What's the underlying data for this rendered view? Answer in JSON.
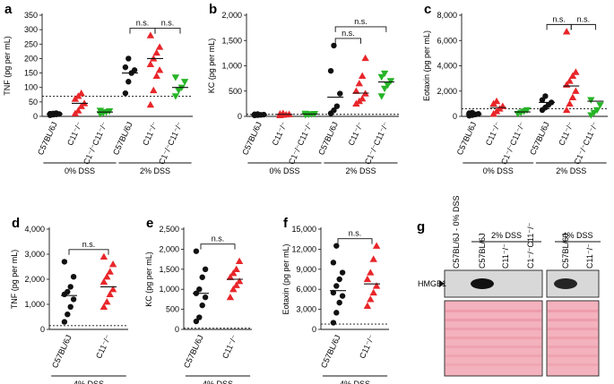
{
  "panels": [
    {
      "letter": "a",
      "ylabel": "TNF (pg per mL)",
      "yticks": [
        0,
        50,
        100,
        150,
        200,
        250,
        300,
        350
      ],
      "ylim": [
        0,
        350
      ],
      "threshold": 70,
      "groups": [
        {
          "label": "C57BL/6J",
          "color": "#111111",
          "marker": "circle",
          "values": [
            4,
            6,
            7,
            8,
            9,
            10,
            11
          ],
          "mean": 8
        },
        {
          "label": "C11⁻/⁻",
          "color": "#e8262a",
          "marker": "triangle",
          "values": [
            10,
            20,
            35,
            45,
            60,
            70,
            80
          ],
          "mean": 45
        },
        {
          "label": "C1⁻/⁻C11⁻/⁻",
          "color": "#26b426",
          "marker": "triangle-down",
          "values": [
            8,
            12,
            15,
            18,
            20
          ],
          "mean": 15
        },
        {
          "label": "C57BL/6J",
          "color": "#111111",
          "marker": "circle",
          "values": [
            80,
            120,
            150,
            160,
            170,
            200
          ],
          "mean": 150
        },
        {
          "label": "C11⁻/⁻",
          "color": "#e8262a",
          "marker": "triangle",
          "values": [
            40,
            90,
            140,
            160,
            180,
            200,
            220,
            240,
            280
          ],
          "mean": 200
        },
        {
          "label": "C1⁻/⁻C11⁻/⁻",
          "color": "#26b426",
          "marker": "triangle-down",
          "values": [
            70,
            90,
            100,
            120,
            135
          ],
          "mean": 100
        }
      ],
      "sig": [
        {
          "from": 3,
          "to": 4,
          "label": "n.s.",
          "level": 0
        },
        {
          "from": 4,
          "to": 5,
          "label": "n.s.",
          "level": 0
        }
      ],
      "conditions": [
        {
          "label": "0% DSS",
          "groups": [
            0,
            2
          ]
        },
        {
          "label": "2% DSS",
          "groups": [
            3,
            5
          ]
        }
      ]
    },
    {
      "letter": "b",
      "ylabel": "KC (pg per mL)",
      "yticks": [
        0,
        500,
        1000,
        1500,
        2000
      ],
      "ylim": [
        0,
        2000
      ],
      "threshold": 40,
      "groups": [
        {
          "label": "C57BL/6J",
          "color": "#111111",
          "marker": "circle",
          "values": [
            20,
            25,
            30,
            35,
            40,
            45
          ],
          "mean": 30
        },
        {
          "label": "C11⁻/⁻",
          "color": "#e8262a",
          "marker": "triangle",
          "values": [
            20,
            30,
            35,
            40,
            50,
            60
          ],
          "mean": 40
        },
        {
          "label": "C1⁻/⁻C11⁻/⁻",
          "color": "#26b426",
          "marker": "triangle-down",
          "values": [
            30,
            40,
            45,
            50,
            55
          ],
          "mean": 45
        },
        {
          "label": "C57BL/6J",
          "color": "#111111",
          "marker": "circle",
          "values": [
            60,
            120,
            200,
            450,
            900,
            1400
          ],
          "mean": 380
        },
        {
          "label": "C11⁻/⁻",
          "color": "#e8262a",
          "marker": "triangle",
          "values": [
            250,
            300,
            350,
            450,
            500,
            650,
            800,
            1150
          ],
          "mean": 460
        },
        {
          "label": "C1⁻/⁻C11⁻/⁻",
          "color": "#26b426",
          "marker": "triangle-down",
          "values": [
            400,
            550,
            620,
            700,
            780,
            850
          ],
          "mean": 680
        }
      ],
      "sig": [
        {
          "from": 3,
          "to": 4,
          "label": "n.s.",
          "level": 0
        },
        {
          "from": 3,
          "to": 5,
          "label": "n.s.",
          "level": 1
        }
      ],
      "conditions": [
        {
          "label": "0% DSS",
          "groups": [
            0,
            2
          ]
        },
        {
          "label": "2% DSS",
          "groups": [
            3,
            5
          ]
        }
      ]
    },
    {
      "letter": "c",
      "ylabel": "Eotaxin (pg per mL)",
      "yticks": [
        0,
        2000,
        4000,
        6000,
        8000
      ],
      "ylim": [
        0,
        8000
      ],
      "threshold": 600,
      "groups": [
        {
          "label": "C57BL/6J",
          "color": "#111111",
          "marker": "circle",
          "values": [
            50,
            100,
            150,
            200,
            250,
            300
          ],
          "mean": 150
        },
        {
          "label": "C11⁻/⁻",
          "color": "#e8262a",
          "marker": "triangle",
          "values": [
            200,
            400,
            600,
            800,
            1000,
            1200
          ],
          "mean": 700
        },
        {
          "label": "C1⁻/⁻C11⁻/⁻",
          "color": "#26b426",
          "marker": "triangle-down",
          "values": [
            200,
            300,
            400,
            500
          ],
          "mean": 350
        },
        {
          "label": "C57BL/6J",
          "color": "#111111",
          "marker": "circle",
          "values": [
            500,
            700,
            900,
            1100,
            1300,
            1600
          ],
          "mean": 1100
        },
        {
          "label": "C11⁻/⁻",
          "color": "#e8262a",
          "marker": "triangle",
          "values": [
            500,
            1000,
            1500,
            2000,
            2500,
            2800,
            3200,
            3500,
            6700
          ],
          "mean": 2400
        },
        {
          "label": "C1⁻/⁻C11⁻/⁻",
          "color": "#26b426",
          "marker": "triangle-down",
          "values": [
            100,
            300,
            500,
            900,
            1300
          ],
          "mean": 1200
        }
      ],
      "sig": [
        {
          "from": 3,
          "to": 4,
          "label": "n.s.",
          "level": 0
        },
        {
          "from": 4,
          "to": 5,
          "label": "n.s.",
          "level": 0
        }
      ],
      "conditions": [
        {
          "label": "0% DSS",
          "groups": [
            0,
            2
          ]
        },
        {
          "label": "2% DSS",
          "groups": [
            3,
            5
          ]
        }
      ]
    },
    {
      "letter": "d",
      "ylabel": "TNF (pg per mL)",
      "yticks": [
        0,
        1000,
        2000,
        3000,
        4000
      ],
      "ylim": [
        0,
        4000
      ],
      "yticklabels": [
        "0",
        "1,000",
        "2,000",
        "3,000",
        "4,000"
      ],
      "threshold": 150,
      "groups": [
        {
          "label": "C57BL/6J",
          "color": "#111111",
          "marker": "circle",
          "values": [
            300,
            600,
            900,
            1200,
            1400,
            1500,
            1700,
            2100,
            2700
          ],
          "mean": 1350
        },
        {
          "label": "C11⁻/⁻",
          "color": "#e8262a",
          "marker": "triangle",
          "values": [
            900,
            1100,
            1400,
            1600,
            1900,
            2100,
            2300,
            2600,
            2900
          ],
          "mean": 1700
        }
      ],
      "sig": [
        {
          "from": 0,
          "to": 1,
          "label": "n.s.",
          "level": 0
        }
      ],
      "conditions": [
        {
          "label": "4% DSS",
          "groups": [
            0,
            1
          ]
        }
      ]
    },
    {
      "letter": "e",
      "ylabel": "KC (pg per mL)",
      "yticks": [
        0,
        500,
        1000,
        1500,
        2000,
        2500
      ],
      "ylim": [
        0,
        2500
      ],
      "yticklabels": [
        "0",
        "500",
        "1,000",
        "1,500",
        "2,000",
        "2,500"
      ],
      "threshold": 30,
      "groups": [
        {
          "label": "C57BL/6J",
          "color": "#111111",
          "marker": "circle",
          "values": [
            200,
            300,
            600,
            800,
            900,
            1000,
            1300,
            1500,
            1950
          ],
          "mean": 900
        },
        {
          "label": "C11⁻/⁻",
          "color": "#e8262a",
          "marker": "triangle",
          "values": [
            800,
            1000,
            1100,
            1200,
            1300,
            1400,
            1500,
            1700
          ],
          "mean": 1250
        }
      ],
      "sig": [
        {
          "from": 0,
          "to": 1,
          "label": "n.s.",
          "level": 0
        }
      ],
      "conditions": [
        {
          "label": "4% DSS",
          "groups": [
            0,
            1
          ]
        }
      ]
    },
    {
      "letter": "f",
      "ylabel": "Eotaxin (pg per mL)",
      "yticks": [
        0,
        3000,
        6000,
        9000,
        12000,
        15000
      ],
      "ylim": [
        0,
        15000
      ],
      "yticklabels": [
        "0",
        "3,000",
        "6,000",
        "9,000",
        "12,000",
        "15,000"
      ],
      "threshold": 800,
      "groups": [
        {
          "label": "C57BL/6J",
          "color": "#111111",
          "marker": "circle",
          "values": [
            1000,
            2500,
            4000,
            5000,
            5500,
            6500,
            7500,
            8500,
            10000,
            12500
          ],
          "mean": 5800
        },
        {
          "label": "C11⁻/⁻",
          "color": "#e8262a",
          "marker": "triangle",
          "values": [
            3500,
            4500,
            5500,
            6500,
            7500,
            8500,
            10500,
            12500
          ],
          "mean": 6800
        }
      ],
      "sig": [
        {
          "from": 0,
          "to": 1,
          "label": "n.s.",
          "level": 0
        }
      ],
      "conditions": [
        {
          "label": "4% DSS",
          "groups": [
            0,
            1
          ]
        }
      ]
    }
  ],
  "panel_g": {
    "letter": "g",
    "lane_labels": [
      "C57BL/6J - 0% DSS",
      "C57BL/6J",
      "C11⁻/⁻",
      "C1⁻/⁻C11⁻/⁻",
      "C57BL/6J",
      "C11⁻/⁻"
    ],
    "group_labels": [
      {
        "label": "2% DSS",
        "lanes": [
          1,
          3
        ]
      },
      {
        "label": "4% DSS",
        "lanes": [
          4,
          5
        ]
      }
    ],
    "band_label": "HMGB1",
    "band_intensity": [
      0.05,
      1.0,
      0.05,
      0.08,
      0.9,
      0.05
    ],
    "ponceau_color": "#f3b2bd",
    "blot_color": "#c9c9c9"
  }
}
